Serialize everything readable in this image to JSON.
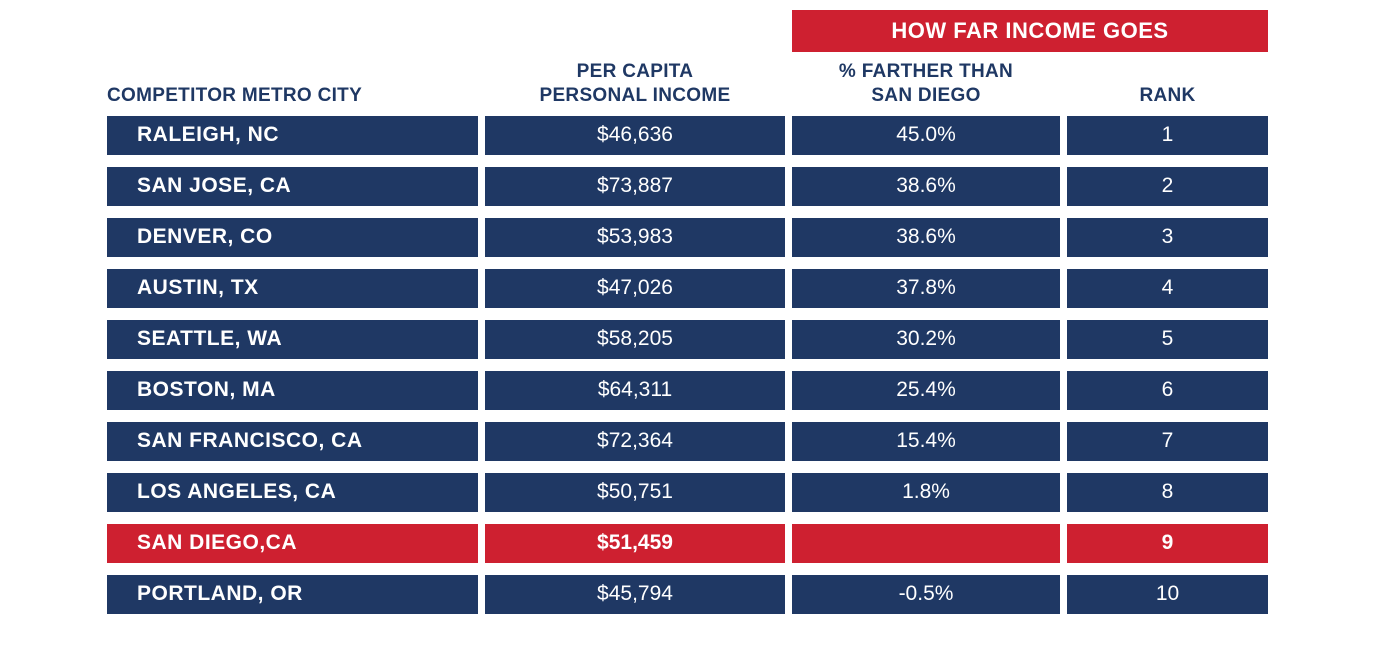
{
  "colors": {
    "navy": "#1F3864",
    "red": "#CE2030",
    "text_on_dark": "#FFFFFF",
    "header_text": "#1F3864",
    "background": "#FFFFFF"
  },
  "header": {
    "banner": "HOW FAR INCOME GOES",
    "col_city": "COMPETITOR METRO CITY",
    "col_income_line1": "PER CAPITA",
    "col_income_line2": "PERSONAL INCOME",
    "col_pct_line1": "% FARTHER THAN",
    "col_pct_line2": "SAN DIEGO",
    "col_rank": "RANK"
  },
  "chart_data": {
    "type": "table",
    "title": "HOW FAR INCOME GOES",
    "columns": [
      "COMPETITOR METRO CITY",
      "PER CAPITA PERSONAL INCOME",
      "% FARTHER THAN SAN DIEGO",
      "RANK"
    ],
    "highlight_row_index": 8,
    "rows": [
      {
        "city": "RALEIGH, NC",
        "income": "$46,636",
        "pct": "45.0%",
        "rank": "1"
      },
      {
        "city": "SAN JOSE, CA",
        "income": "$73,887",
        "pct": "38.6%",
        "rank": "2"
      },
      {
        "city": "DENVER, CO",
        "income": "$53,983",
        "pct": "38.6%",
        "rank": "3"
      },
      {
        "city": "AUSTIN, TX",
        "income": "$47,026",
        "pct": "37.8%",
        "rank": "4"
      },
      {
        "city": "SEATTLE, WA",
        "income": "$58,205",
        "pct": "30.2%",
        "rank": "5"
      },
      {
        "city": "BOSTON, MA",
        "income": "$64,311",
        "pct": "25.4%",
        "rank": "6"
      },
      {
        "city": "SAN FRANCISCO, CA",
        "income": "$72,364",
        "pct": "15.4%",
        "rank": "7"
      },
      {
        "city": "LOS ANGELES, CA",
        "income": "$50,751",
        "pct": "1.8%",
        "rank": "8"
      },
      {
        "city": "SAN DIEGO,CA",
        "income": "$51,459",
        "pct": "",
        "rank": "9"
      },
      {
        "city": "PORTLAND, OR",
        "income": "$45,794",
        "pct": "-0.5%",
        "rank": "10"
      }
    ]
  }
}
